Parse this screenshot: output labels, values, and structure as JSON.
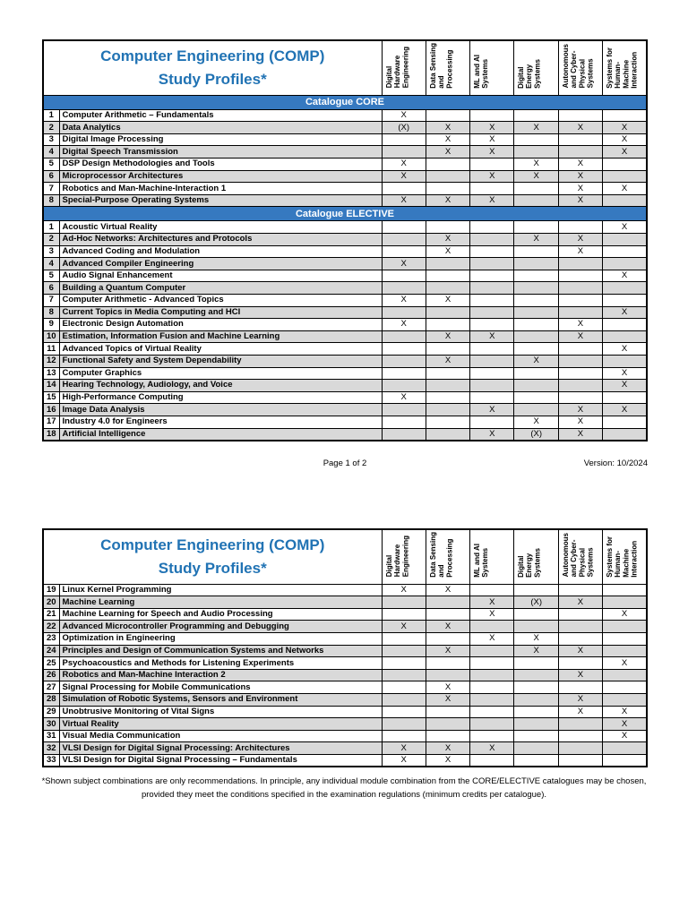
{
  "colors": {
    "title_blue": "#2173B4",
    "band_blue": "#3679C0",
    "alt_gray": "#D9D9D9"
  },
  "header": {
    "title_line1": "Computer Engineering (COMP)",
    "title_line2": "Study Profiles*",
    "columns": [
      "Digital\nHardware\nEngineering",
      "Data Sensing\nand\nProcessing",
      "ML and AI\nSystems",
      "Digital\nEnergy\nSystems",
      "Autonomous\nand Cyber-\nPhysical\nSystems",
      "Systems for\nHuman-\nMachine\nInteraction"
    ]
  },
  "page1": {
    "sections": [
      {
        "title": "Catalogue CORE",
        "rows": [
          {
            "num": "1",
            "name": "Computer Arithmetic – Fundamentals",
            "marks": [
              "X",
              "",
              "",
              "",
              "",
              ""
            ]
          },
          {
            "num": "2",
            "name": "Data Analytics",
            "marks": [
              "(X)",
              "X",
              "X",
              "X",
              "X",
              "X"
            ]
          },
          {
            "num": "3",
            "name": "Digital Image Processing",
            "marks": [
              "",
              "X",
              "X",
              "",
              "",
              "X"
            ]
          },
          {
            "num": "4",
            "name": "Digital Speech Transmission",
            "marks": [
              "",
              "X",
              "X",
              "",
              "",
              "X"
            ]
          },
          {
            "num": "5",
            "name": "DSP Design Methodologies and Tools",
            "marks": [
              "X",
              "",
              "",
              "X",
              "X",
              ""
            ]
          },
          {
            "num": "6",
            "name": "Microprocessor Architectures",
            "marks": [
              "X",
              "",
              "X",
              "X",
              "X",
              ""
            ]
          },
          {
            "num": "7",
            "name": "Robotics and Man-Machine-Interaction 1",
            "marks": [
              "",
              "",
              "",
              "",
              "X",
              "X"
            ]
          },
          {
            "num": "8",
            "name": "Special-Purpose Operating Systems",
            "marks": [
              "X",
              "X",
              "X",
              "",
              "X",
              ""
            ]
          }
        ]
      },
      {
        "title": "Catalogue ELECTIVE",
        "rows": [
          {
            "num": "1",
            "name": "Acoustic Virtual Reality",
            "marks": [
              "",
              "",
              "",
              "",
              "",
              "X"
            ]
          },
          {
            "num": "2",
            "name": "Ad-Hoc Networks: Architectures and Protocols",
            "marks": [
              "",
              "X",
              "",
              "X",
              "X",
              ""
            ]
          },
          {
            "num": "3",
            "name": "Advanced Coding and Modulation",
            "marks": [
              "",
              "X",
              "",
              "",
              "X",
              ""
            ]
          },
          {
            "num": "4",
            "name": "Advanced Compiler Engineering",
            "marks": [
              "X",
              "",
              "",
              "",
              "",
              ""
            ]
          },
          {
            "num": "5",
            "name": "Audio Signal Enhancement",
            "marks": [
              "",
              "",
              "",
              "",
              "",
              "X"
            ]
          },
          {
            "num": "6",
            "name": "Building a Quantum Computer",
            "marks": [
              "",
              "",
              "",
              "",
              "",
              ""
            ]
          },
          {
            "num": "7",
            "name": "Computer Arithmetic - Advanced Topics",
            "marks": [
              "X",
              "X",
              "",
              "",
              "",
              ""
            ]
          },
          {
            "num": "8",
            "name": "Current Topics in Media Computing and HCI",
            "marks": [
              "",
              "",
              "",
              "",
              "",
              "X"
            ]
          },
          {
            "num": "9",
            "name": "Electronic Design Automation",
            "marks": [
              "X",
              "",
              "",
              "",
              "X",
              ""
            ]
          },
          {
            "num": "10",
            "name": "Estimation, Information Fusion and Machine Learning",
            "marks": [
              "",
              "X",
              "X",
              "",
              "X",
              ""
            ]
          },
          {
            "num": "11",
            "name": "Advanced Topics of Virtual Reality",
            "marks": [
              "",
              "",
              "",
              "",
              "",
              "X"
            ]
          },
          {
            "num": "12",
            "name": "Functional Safety and System Dependability",
            "marks": [
              "",
              "X",
              "",
              "X",
              "",
              ""
            ]
          },
          {
            "num": "13",
            "name": "Computer Graphics",
            "marks": [
              "",
              "",
              "",
              "",
              "",
              "X"
            ]
          },
          {
            "num": "14",
            "name": "Hearing Technology, Audiology, and Voice",
            "marks": [
              "",
              "",
              "",
              "",
              "",
              "X"
            ]
          },
          {
            "num": "15",
            "name": "High-Performance Computing",
            "marks": [
              "X",
              "",
              "",
              "",
              "",
              ""
            ]
          },
          {
            "num": "16",
            "name": "Image Data Analysis",
            "marks": [
              "",
              "",
              "X",
              "",
              "X",
              "X"
            ]
          },
          {
            "num": "17",
            "name": "Industry 4.0 for Engineers",
            "marks": [
              "",
              "",
              "",
              "X",
              "X",
              ""
            ]
          },
          {
            "num": "18",
            "name": "Artificial Intelligence",
            "marks": [
              "",
              "",
              "X",
              "(X)",
              "X",
              ""
            ]
          }
        ]
      }
    ],
    "footer": {
      "page": "Page 1 of 2",
      "version": "Version: 10/2024"
    }
  },
  "page2": {
    "rows": [
      {
        "num": "19",
        "name": "Linux Kernel Programming",
        "marks": [
          "X",
          "X",
          "",
          "",
          "",
          ""
        ]
      },
      {
        "num": "20",
        "name": "Machine Learning",
        "marks": [
          "",
          "",
          "X",
          "(X)",
          "X",
          ""
        ]
      },
      {
        "num": "21",
        "name": "Machine Learning for Speech and Audio Processing",
        "marks": [
          "",
          "",
          "X",
          "",
          "",
          "X"
        ]
      },
      {
        "num": "22",
        "name": "Advanced Microcontroller Programming and Debugging",
        "marks": [
          "X",
          "X",
          "",
          "",
          "",
          ""
        ]
      },
      {
        "num": "23",
        "name": "Optimization in Engineering",
        "marks": [
          "",
          "",
          "X",
          "X",
          "",
          ""
        ]
      },
      {
        "num": "24",
        "name": "Principles and Design of Communication Systems and Networks",
        "marks": [
          "",
          "X",
          "",
          "X",
          "X",
          ""
        ]
      },
      {
        "num": "25",
        "name": "Psychoacoustics and Methods for Listening Experiments",
        "marks": [
          "",
          "",
          "",
          "",
          "",
          "X"
        ]
      },
      {
        "num": "26",
        "name": "Robotics and Man-Machine Interaction 2",
        "marks": [
          "",
          "",
          "",
          "",
          "X",
          ""
        ]
      },
      {
        "num": "27",
        "name": "Signal Processing for Mobile Communications",
        "marks": [
          "",
          "X",
          "",
          "",
          "",
          ""
        ]
      },
      {
        "num": "28",
        "name": "Simulation of Robotic Systems, Sensors and Environment",
        "marks": [
          "",
          "X",
          "",
          "",
          "X",
          ""
        ]
      },
      {
        "num": "29",
        "name": "Unobtrusive Monitoring of Vital Signs",
        "marks": [
          "",
          "",
          "",
          "",
          "X",
          "X"
        ]
      },
      {
        "num": "30",
        "name": "Virtual Reality",
        "marks": [
          "",
          "",
          "",
          "",
          "",
          "X"
        ]
      },
      {
        "num": "31",
        "name": "Visual Media Communication",
        "marks": [
          "",
          "",
          "",
          "",
          "",
          "X"
        ]
      },
      {
        "num": "32",
        "name": "VLSI Design for Digital Signal Processing: Architectures",
        "marks": [
          "X",
          "X",
          "X",
          "",
          "",
          ""
        ]
      },
      {
        "num": "33",
        "name": "VLSI Design for Digital Signal Processing – Fundamentals",
        "marks": [
          "X",
          "X",
          "",
          "",
          "",
          ""
        ]
      }
    ],
    "footnote": "*Shown subject combinations are only recommendations. In principle, any individual module combination from the CORE/ELECTIVE catalogues may be chosen, provided they meet the conditions specified in the examination regulations (minimum credits per catalogue)."
  }
}
